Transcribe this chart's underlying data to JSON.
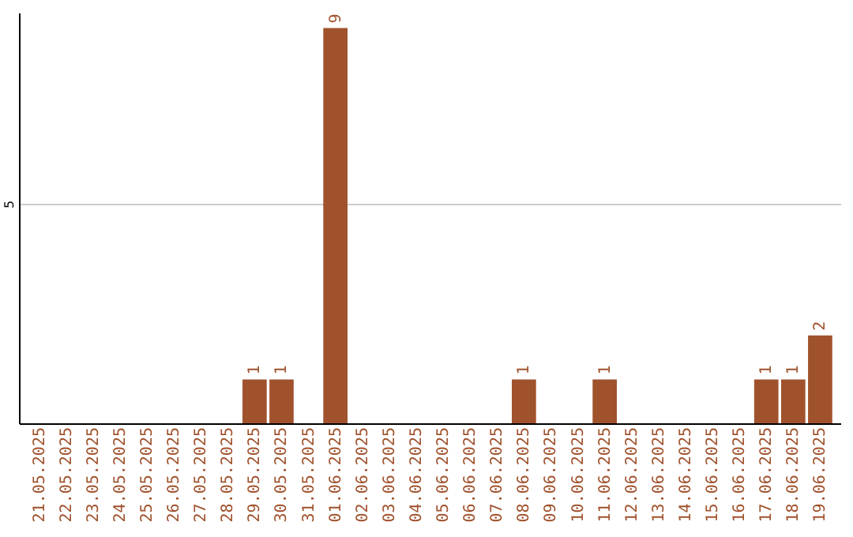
{
  "chart_data": {
    "type": "bar",
    "categories": [
      "21.05.2025",
      "22.05.2025",
      "23.05.2025",
      "24.05.2025",
      "25.05.2025",
      "26.05.2025",
      "27.05.2025",
      "28.05.2025",
      "29.05.2025",
      "30.05.2025",
      "31.05.2025",
      "01.06.2025",
      "02.06.2025",
      "03.06.2025",
      "04.06.2025",
      "05.06.2025",
      "06.06.2025",
      "07.06.2025",
      "08.06.2025",
      "09.06.2025",
      "10.06.2025",
      "11.06.2025",
      "12.06.2025",
      "13.06.2025",
      "14.06.2025",
      "15.06.2025",
      "16.06.2025",
      "17.06.2025",
      "18.06.2025",
      "19.06.2025"
    ],
    "values": [
      0,
      0,
      0,
      0,
      0,
      0,
      0,
      0,
      1,
      1,
      0,
      9,
      0,
      0,
      0,
      0,
      0,
      0,
      1,
      0,
      0,
      1,
      0,
      0,
      0,
      0,
      0,
      1,
      1,
      2
    ],
    "value_labels": [
      null,
      null,
      null,
      null,
      null,
      null,
      null,
      null,
      "1",
      "1",
      null,
      "9",
      null,
      null,
      null,
      null,
      null,
      null,
      "1",
      null,
      null,
      "1",
      null,
      null,
      null,
      null,
      null,
      "1",
      "1",
      "2"
    ],
    "color": "#a0522d",
    "ylim": [
      0,
      9.35
    ],
    "yticks": [
      5
    ],
    "grid": "y"
  }
}
